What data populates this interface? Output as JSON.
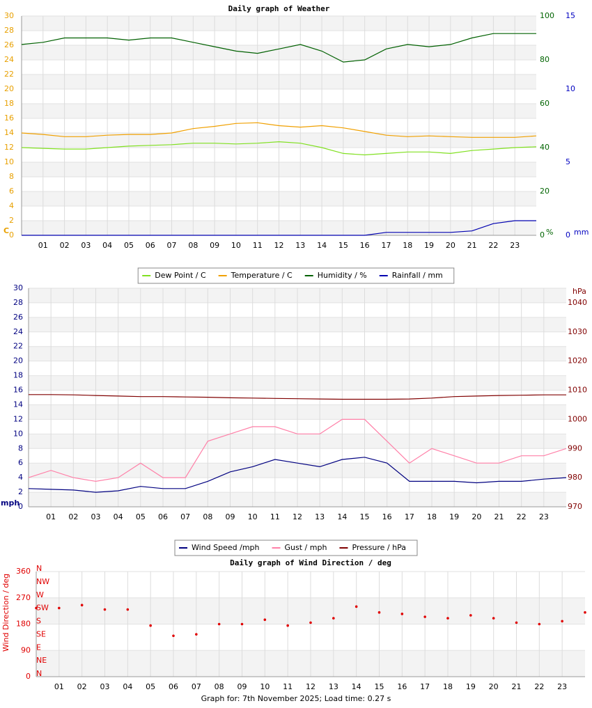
{
  "chart_data": [
    {
      "type": "line",
      "title": "Daily graph of Weather",
      "x": [
        0,
        1,
        2,
        3,
        4,
        5,
        6,
        7,
        8,
        9,
        10,
        11,
        12,
        13,
        14,
        15,
        16,
        17,
        18,
        19,
        20,
        21,
        22,
        23,
        24
      ],
      "xlim": [
        0,
        24
      ],
      "xticks": [
        {
          "value": 1,
          "label": "01"
        },
        {
          "value": 2,
          "label": "02"
        },
        {
          "value": 3,
          "label": "03"
        },
        {
          "value": 4,
          "label": "04"
        },
        {
          "value": 5,
          "label": "05"
        },
        {
          "value": 6,
          "label": "06"
        },
        {
          "value": 7,
          "label": "07"
        },
        {
          "value": 8,
          "label": "08"
        },
        {
          "value": 9,
          "label": "09"
        },
        {
          "value": 10,
          "label": "10"
        },
        {
          "value": 11,
          "label": "11"
        },
        {
          "value": 12,
          "label": "12"
        },
        {
          "value": 13,
          "label": "13"
        },
        {
          "value": 14,
          "label": "14"
        },
        {
          "value": 15,
          "label": "15"
        },
        {
          "value": 16,
          "label": "16"
        },
        {
          "value": 17,
          "label": "17"
        },
        {
          "value": 18,
          "label": "18"
        },
        {
          "value": 19,
          "label": "19"
        },
        {
          "value": 20,
          "label": "20"
        },
        {
          "value": 21,
          "label": "21"
        },
        {
          "value": 22,
          "label": "22"
        },
        {
          "value": 23,
          "label": "23"
        }
      ],
      "ylim": [
        0,
        30
      ],
      "yticks": [
        0,
        2,
        4,
        6,
        8,
        10,
        12,
        14,
        16,
        18,
        20,
        22,
        24,
        26,
        28,
        30
      ],
      "ylabel": "C",
      "y2lim": [
        0,
        100
      ],
      "y2ticks": [
        0,
        20,
        40,
        60,
        80,
        100
      ],
      "y2label": "%",
      "y3lim": [
        0,
        15
      ],
      "y3ticks": [
        0,
        5,
        10,
        15
      ],
      "y3label": "mm",
      "axis_colors": {
        "y": "#e8a000",
        "y2": "#006400",
        "y3": "#0000c0"
      },
      "grid": true,
      "legend": "bottom",
      "series": [
        {
          "name": "Dew Point / C",
          "color": "#80e020",
          "values": [
            12.0,
            11.9,
            11.8,
            11.8,
            12.0,
            12.2,
            12.3,
            12.4,
            12.6,
            12.6,
            12.5,
            12.6,
            12.8,
            12.6,
            12.0,
            11.2,
            11.0,
            11.2,
            11.4,
            11.4,
            11.2,
            11.6,
            11.8,
            12.0,
            12.1
          ]
        },
        {
          "name": "Temperature / C",
          "color": "#f0a000",
          "values": [
            14.0,
            13.8,
            13.5,
            13.5,
            13.7,
            13.8,
            13.8,
            14.0,
            14.6,
            14.9,
            15.3,
            15.4,
            15.0,
            14.8,
            15.0,
            14.7,
            14.2,
            13.7,
            13.5,
            13.6,
            13.5,
            13.4,
            13.4,
            13.4,
            13.6
          ]
        },
        {
          "name": "Humidity / %",
          "color": "#006000",
          "axis": "y2",
          "values": [
            87,
            88,
            90,
            90,
            90,
            89,
            90,
            90,
            88,
            86,
            84,
            83,
            85,
            87,
            84,
            79,
            80,
            85,
            87,
            86,
            87,
            90,
            92,
            92,
            92
          ]
        },
        {
          "name": "Rainfall / mm",
          "color": "#0000b0",
          "axis": "y3",
          "values": [
            0,
            0,
            0,
            0,
            0,
            0,
            0,
            0,
            0,
            0,
            0,
            0,
            0,
            0,
            0,
            0,
            0,
            0.2,
            0.2,
            0.2,
            0.2,
            0.3,
            0.8,
            1.0,
            1.0
          ]
        }
      ]
    },
    {
      "type": "line",
      "x": [
        0,
        1,
        2,
        3,
        4,
        5,
        6,
        7,
        8,
        9,
        10,
        11,
        12,
        13,
        14,
        15,
        16,
        17,
        18,
        19,
        20,
        21,
        22,
        23,
        24
      ],
      "xlim": [
        0,
        24
      ],
      "xticks": [
        {
          "value": 1,
          "label": "01"
        },
        {
          "value": 2,
          "label": "02"
        },
        {
          "value": 3,
          "label": "03"
        },
        {
          "value": 4,
          "label": "04"
        },
        {
          "value": 5,
          "label": "05"
        },
        {
          "value": 6,
          "label": "06"
        },
        {
          "value": 7,
          "label": "07"
        },
        {
          "value": 8,
          "label": "08"
        },
        {
          "value": 9,
          "label": "09"
        },
        {
          "value": 10,
          "label": "10"
        },
        {
          "value": 11,
          "label": "11"
        },
        {
          "value": 12,
          "label": "12"
        },
        {
          "value": 13,
          "label": "13"
        },
        {
          "value": 14,
          "label": "14"
        },
        {
          "value": 15,
          "label": "15"
        },
        {
          "value": 16,
          "label": "16"
        },
        {
          "value": 17,
          "label": "17"
        },
        {
          "value": 18,
          "label": "18"
        },
        {
          "value": 19,
          "label": "19"
        },
        {
          "value": 20,
          "label": "20"
        },
        {
          "value": 21,
          "label": "21"
        },
        {
          "value": 22,
          "label": "22"
        },
        {
          "value": 23,
          "label": "23"
        }
      ],
      "ylim": [
        0,
        30
      ],
      "yticks": [
        0,
        2,
        4,
        6,
        8,
        10,
        12,
        14,
        16,
        18,
        20,
        22,
        24,
        26,
        28,
        30
      ],
      "ylabel": "mph",
      "y2lim": [
        970,
        1045
      ],
      "y2ticks": [
        970,
        980,
        990,
        1000,
        1010,
        1020,
        1030,
        1040
      ],
      "y2label": "hPa",
      "axis_colors": {
        "y": "#000080",
        "y2": "#800000"
      },
      "grid": true,
      "legend": "bottom",
      "series": [
        {
          "name": "Wind Speed /mph",
          "color": "#000080",
          "values": [
            2.5,
            2.4,
            2.3,
            2.0,
            2.2,
            2.8,
            2.5,
            2.5,
            3.5,
            4.8,
            5.5,
            6.5,
            6.0,
            5.5,
            6.5,
            6.8,
            6.0,
            3.5,
            3.5,
            3.5,
            3.3,
            3.5,
            3.5,
            3.8,
            4.0
          ]
        },
        {
          "name": "Gust / mph",
          "color": "#ff80a8",
          "values": [
            4,
            5,
            4,
            3.5,
            4,
            6,
            4,
            4,
            9,
            10,
            11,
            11,
            10,
            10,
            12,
            12,
            9,
            6,
            8,
            7,
            6,
            6,
            7,
            7,
            8
          ]
        },
        {
          "name": "Pressure / hPa",
          "color": "#800000",
          "axis": "y2",
          "values": [
            1008.5,
            1008.5,
            1008.4,
            1008.2,
            1008,
            1007.8,
            1007.8,
            1007.7,
            1007.6,
            1007.4,
            1007.3,
            1007.2,
            1007.1,
            1007,
            1006.9,
            1006.9,
            1006.9,
            1007,
            1007.3,
            1007.8,
            1008,
            1008.2,
            1008.3,
            1008.4,
            1008.4
          ]
        }
      ]
    },
    {
      "type": "scatter",
      "title": "Daily graph of Wind Direction / deg",
      "x": [
        0,
        1,
        2,
        3,
        4,
        5,
        6,
        7,
        8,
        9,
        10,
        11,
        12,
        13,
        14,
        15,
        16,
        17,
        18,
        19,
        20,
        21,
        22,
        23,
        24
      ],
      "xlim": [
        0,
        24
      ],
      "xticks": [
        {
          "value": 1,
          "label": "01"
        },
        {
          "value": 2,
          "label": "02"
        },
        {
          "value": 3,
          "label": "03"
        },
        {
          "value": 4,
          "label": "04"
        },
        {
          "value": 5,
          "label": "05"
        },
        {
          "value": 6,
          "label": "06"
        },
        {
          "value": 7,
          "label": "07"
        },
        {
          "value": 8,
          "label": "08"
        },
        {
          "value": 9,
          "label": "09"
        },
        {
          "value": 10,
          "label": "10"
        },
        {
          "value": 11,
          "label": "11"
        },
        {
          "value": 12,
          "label": "12"
        },
        {
          "value": 13,
          "label": "13"
        },
        {
          "value": 14,
          "label": "14"
        },
        {
          "value": 15,
          "label": "15"
        },
        {
          "value": 16,
          "label": "16"
        },
        {
          "value": 17,
          "label": "17"
        },
        {
          "value": 18,
          "label": "18"
        },
        {
          "value": 19,
          "label": "19"
        },
        {
          "value": 20,
          "label": "20"
        },
        {
          "value": 21,
          "label": "21"
        },
        {
          "value": 22,
          "label": "22"
        },
        {
          "value": 23,
          "label": "23"
        }
      ],
      "ylim": [
        0,
        360
      ],
      "yticks": [
        0,
        90,
        180,
        270,
        360
      ],
      "ylabel": "Wind Direction / deg",
      "compass": [
        {
          "value": 360,
          "label": "N"
        },
        {
          "value": 315,
          "label": "NW"
        },
        {
          "value": 270,
          "label": "W"
        },
        {
          "value": 225,
          "label": "SW"
        },
        {
          "value": 180,
          "label": "S"
        },
        {
          "value": 135,
          "label": "SE"
        },
        {
          "value": 90,
          "label": "E"
        },
        {
          "value": 45,
          "label": "NE"
        },
        {
          "value": 0,
          "label": "N"
        }
      ],
      "axis_colors": {
        "y": "#e00000"
      },
      "grid": true,
      "series": [
        {
          "color": "#e00000",
          "values": [
            235,
            235,
            245,
            230,
            230,
            175,
            140,
            145,
            180,
            180,
            195,
            175,
            185,
            200,
            240,
            220,
            215,
            205,
            200,
            210,
            200,
            185,
            180,
            190,
            220
          ]
        }
      ]
    }
  ],
  "footer": "Graph for: 7th November 2025; Load time: 0.27 s"
}
